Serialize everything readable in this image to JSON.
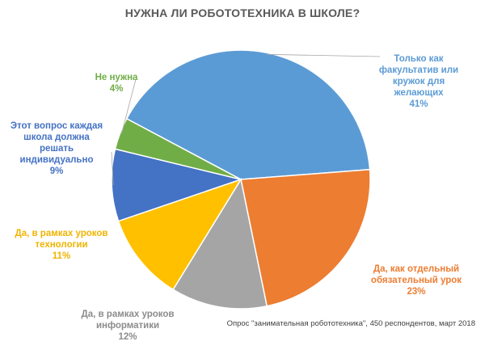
{
  "chart_data": {
    "type": "pie",
    "title": "НУЖНА ЛИ РОБОТОТЕХНИКА В ШКОЛЕ?",
    "slices": [
      {
        "label": "Только как\nфакультатив или\nкружок для\nжелающих",
        "value": 41,
        "display": "41%",
        "color": "#5B9BD5"
      },
      {
        "label": "Да, как отдельный\nобязательный урок",
        "value": 23,
        "display": "23%",
        "color": "#ED7D31"
      },
      {
        "label": "Да, в рамках уроков\nинформатики",
        "value": 12,
        "display": "12%",
        "color": "#A5A5A5"
      },
      {
        "label": "Да, в рамках уроков\nтехнологии",
        "value": 11,
        "display": "11%",
        "color": "#FFC000"
      },
      {
        "label": "Этот вопрос каждая\nшкола должна\nрешать\nиндивидуально",
        "value": 9,
        "display": "9%",
        "color": "#4472C4"
      },
      {
        "label": "Не нужна",
        "value": 4,
        "display": "4%",
        "color": "#70AD47"
      }
    ],
    "footnote": "Опрос \"занимательная робототехника\", 450 респондентов, март 2018"
  }
}
